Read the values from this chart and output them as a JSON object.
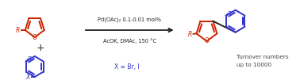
{
  "bg_color": "#ffffff",
  "red_color": "#cc2200",
  "blue_color": "#3333cc",
  "black_color": "#222222",
  "gray_color": "#444444",
  "reaction_line1": "Pd(OAc)₂ 0.1-0.01 mol%",
  "reaction_line2": "AcOK, DMAc, 150 °C",
  "x_label": "X = Br, I",
  "turnover_line1": "Turnover numbers",
  "turnover_line2": "up to 10000",
  "figsize": [
    3.78,
    1.06
  ],
  "dpi": 100
}
